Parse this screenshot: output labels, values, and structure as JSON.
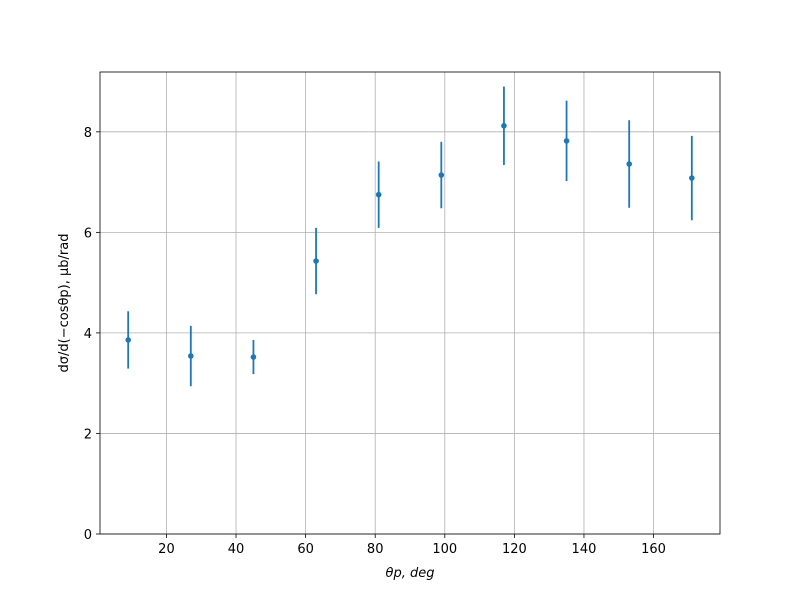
{
  "chart_data": {
    "type": "errorbar",
    "x_label": "θp, deg",
    "y_label": "dσ/d(−cosθp), μb/rad",
    "x": [
      9,
      27,
      45,
      63,
      81,
      99,
      117,
      135,
      153,
      171
    ],
    "series": [
      {
        "color": "#1f77b4",
        "values": [
          3.86,
          3.54,
          3.52,
          5.43,
          6.75,
          7.14,
          8.12,
          7.82,
          7.36,
          7.08
        ],
        "errors": [
          0.57,
          0.6,
          0.34,
          0.66,
          0.66,
          0.66,
          0.78,
          0.8,
          0.87,
          0.84
        ]
      }
    ],
    "xlim": [
      0.9,
      179.1
    ],
    "ylim": [
      0,
      9.19
    ],
    "xticks": [
      20,
      40,
      60,
      80,
      100,
      120,
      140,
      160
    ],
    "yticks": [
      0,
      2,
      4,
      6,
      8
    ],
    "grid": true
  }
}
